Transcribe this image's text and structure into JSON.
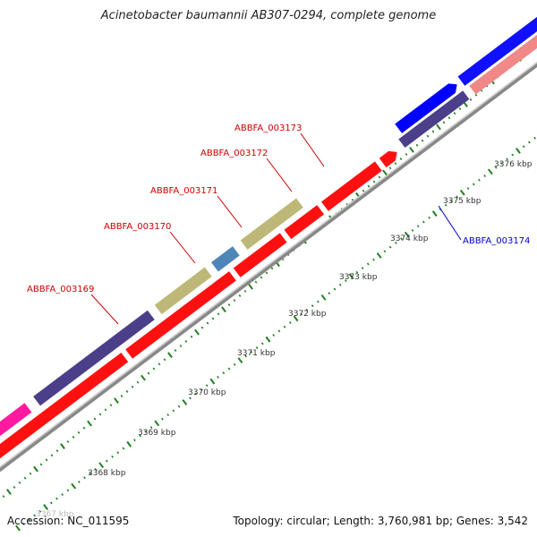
{
  "title": "Acinetobacter baumannii AB307-0294, complete genome",
  "accession": "Accession: NC_011595",
  "stats": "Topology: circular; Length: 3,760,981 bp; Genes: 3,542",
  "colors": {
    "backbone": "#8a8a8a",
    "tick": "#1f7f1f",
    "tag_forward": "#cc0000",
    "tag_reverse": "#0000cc"
  },
  "ruler_labels": [
    "3367 kbp",
    "3368 kbp",
    "3369 kbp",
    "3370 kbp",
    "3371 kbp",
    "3372 kbp",
    "3373 kbp",
    "3374 kbp",
    "3375 kbp",
    "3376 kbp"
  ],
  "genes": [
    {
      "tag": "ABBFA_003169",
      "strand": "forward",
      "color": "#4b3f8a"
    },
    {
      "tag": "ABBFA_003170",
      "strand": "forward",
      "color": "#bdb878"
    },
    {
      "tag": "ABBFA_003171",
      "strand": "forward",
      "color": "#4f86b8"
    },
    {
      "tag": "ABBFA_003172",
      "strand": "forward",
      "color": "#bdb878"
    },
    {
      "tag": "ABBFA_003173",
      "strand": "forward",
      "color": "#ff0000"
    },
    {
      "tag": "ABBFA_003174",
      "strand": "reverse",
      "color": "#4b3f8a"
    }
  ]
}
